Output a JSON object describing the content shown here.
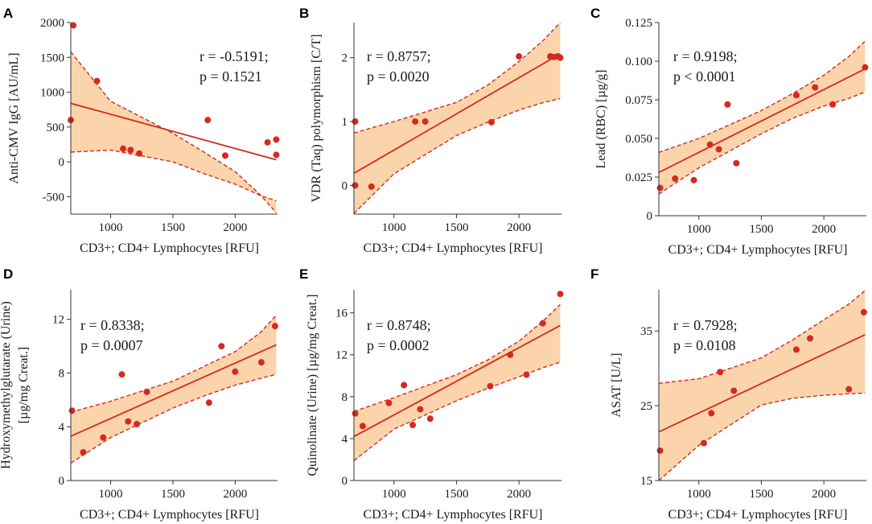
{
  "chart_data": [
    {
      "panel": "A",
      "type": "scatter",
      "xlabel": "CD3+; CD4+ Lymphocytes [RFU]",
      "ylabel": [
        "Anti-CMV IgG [AU/mL]"
      ],
      "xlim": [
        680,
        2340
      ],
      "ylim": [
        -750,
        2000
      ],
      "xticks": [
        1000,
        1500,
        2000
      ],
      "xtick_labels": [
        "1000",
        "1500",
        "2000"
      ],
      "yticks": [
        -500,
        0,
        500,
        1000,
        1500,
        2000
      ],
      "ytick_labels": [
        "-500",
        "0",
        "500",
        "1000",
        "1500",
        "2000"
      ],
      "stats": [
        "r = -0.5191;",
        "p = 0.1521"
      ],
      "points": [
        [
          680,
          600
        ],
        [
          700,
          1960
        ],
        [
          890,
          1160
        ],
        [
          1100,
          190
        ],
        [
          1160,
          170
        ],
        [
          1230,
          120
        ],
        [
          1780,
          600
        ],
        [
          1920,
          90
        ],
        [
          2260,
          280
        ],
        [
          2330,
          100
        ],
        [
          2330,
          320
        ]
      ],
      "fit": [
        [
          680,
          840
        ],
        [
          2330,
          30
        ]
      ],
      "ci_upper": [
        [
          680,
          1580
        ],
        [
          1000,
          870
        ],
        [
          1500,
          410
        ],
        [
          1750,
          140
        ],
        [
          2000,
          -140
        ],
        [
          2200,
          -470
        ],
        [
          2330,
          -730
        ]
      ],
      "ci_lower": [
        [
          680,
          140
        ],
        [
          1000,
          170
        ],
        [
          1500,
          0
        ],
        [
          1750,
          -170
        ],
        [
          2000,
          -320
        ],
        [
          2200,
          -480
        ],
        [
          2330,
          -560
        ]
      ]
    },
    {
      "panel": "B",
      "type": "scatter",
      "xlabel": "CD3+; CD4+ Lymphocytes [RFU]",
      "ylabel": [
        "VDR (Taq) polymorphism [C/T]"
      ],
      "xlim": [
        680,
        2340
      ],
      "ylim": [
        -0.45,
        2.55
      ],
      "xticks": [
        1000,
        1500,
        2000
      ],
      "xtick_labels": [
        "1000",
        "1500",
        "2000"
      ],
      "yticks": [
        0,
        1,
        2
      ],
      "ytick_labels": [
        "0",
        "1",
        "2"
      ],
      "stats": [
        "r = 0.8757;",
        "p = 0.0020"
      ],
      "points": [
        [
          690,
          1.0
        ],
        [
          690,
          0.0
        ],
        [
          820,
          -0.02
        ],
        [
          1170,
          1.0
        ],
        [
          1250,
          1.0
        ],
        [
          1780,
          0.99
        ],
        [
          2000,
          2.02
        ],
        [
          2250,
          2.02
        ],
        [
          2280,
          2.01
        ],
        [
          2310,
          2.02
        ],
        [
          2330,
          2.0
        ]
      ],
      "fit": [
        [
          680,
          0.19
        ],
        [
          2330,
          2.06
        ]
      ],
      "ci_upper": [
        [
          680,
          0.82
        ],
        [
          1000,
          1.0
        ],
        [
          1500,
          1.3
        ],
        [
          1750,
          1.57
        ],
        [
          2000,
          1.94
        ],
        [
          2200,
          2.28
        ],
        [
          2330,
          2.55
        ]
      ],
      "ci_lower": [
        [
          680,
          -0.44
        ],
        [
          1000,
          0.18
        ],
        [
          1500,
          0.78
        ],
        [
          1750,
          0.99
        ],
        [
          2000,
          1.18
        ],
        [
          2200,
          1.3
        ],
        [
          2330,
          1.36
        ]
      ]
    },
    {
      "panel": "C",
      "type": "scatter",
      "xlabel": "CD3+; CD4+ Lymphocytes [RFU]",
      "ylabel": [
        "Lead (RBC) [µg/g]"
      ],
      "xlim": [
        680,
        2340
      ],
      "ylim": [
        0,
        0.125
      ],
      "xticks": [
        1000,
        1500,
        2000
      ],
      "xtick_labels": [
        "1000",
        "1500",
        "2000"
      ],
      "yticks": [
        0,
        0.025,
        0.05,
        0.075,
        0.1,
        0.125
      ],
      "ytick_labels": [
        "0",
        "0.025",
        "0.050",
        "0.075",
        "0.100",
        "0.125"
      ],
      "stats": [
        "r = 0.9198;",
        "p < 0.0001"
      ],
      "points": [
        [
          690,
          0.018
        ],
        [
          810,
          0.024
        ],
        [
          960,
          0.023
        ],
        [
          1090,
          0.046
        ],
        [
          1160,
          0.043
        ],
        [
          1230,
          0.072
        ],
        [
          1300,
          0.034
        ],
        [
          1780,
          0.078
        ],
        [
          1930,
          0.083
        ],
        [
          2070,
          0.072
        ],
        [
          2330,
          0.096
        ]
      ],
      "fit": [
        [
          680,
          0.028
        ],
        [
          2330,
          0.095
        ]
      ],
      "ci_upper": [
        [
          680,
          0.041
        ],
        [
          1000,
          0.05
        ],
        [
          1500,
          0.068
        ],
        [
          1750,
          0.079
        ],
        [
          2000,
          0.091
        ],
        [
          2200,
          0.103
        ],
        [
          2330,
          0.113
        ]
      ],
      "ci_lower": [
        [
          680,
          0.014
        ],
        [
          1000,
          0.031
        ],
        [
          1500,
          0.053
        ],
        [
          1750,
          0.063
        ],
        [
          2000,
          0.071
        ],
        [
          2200,
          0.076
        ],
        [
          2330,
          0.08
        ]
      ]
    },
    {
      "panel": "D",
      "type": "scatter",
      "xlabel": "CD3+; CD4+ Lymphocytes [RFU]",
      "ylabel": [
        "Hydroxymethylglutarate (Urine)",
        "[µg/mg Creat.]"
      ],
      "xlim": [
        680,
        2340
      ],
      "ylim": [
        0,
        14.2
      ],
      "xticks": [
        1000,
        1500,
        2000
      ],
      "xtick_labels": [
        "1000",
        "1500",
        "2000"
      ],
      "yticks": [
        0,
        4,
        8,
        12
      ],
      "ytick_labels": [
        "0",
        "4",
        "8",
        "12"
      ],
      "stats": [
        "r = 0.8338;",
        "p = 0.0007"
      ],
      "points": [
        [
          690,
          5.2
        ],
        [
          780,
          2.1
        ],
        [
          940,
          3.2
        ],
        [
          1090,
          7.9
        ],
        [
          1140,
          4.4
        ],
        [
          1210,
          4.2
        ],
        [
          1290,
          6.6
        ],
        [
          1790,
          5.8
        ],
        [
          1890,
          10.0
        ],
        [
          2000,
          8.1
        ],
        [
          2210,
          8.8
        ],
        [
          2320,
          11.5
        ]
      ],
      "fit": [
        [
          680,
          3.3
        ],
        [
          2330,
          10.1
        ]
      ],
      "ci_upper": [
        [
          680,
          5.1
        ],
        [
          1000,
          5.9
        ],
        [
          1500,
          7.4
        ],
        [
          1750,
          8.5
        ],
        [
          2000,
          9.6
        ],
        [
          2200,
          11.0
        ],
        [
          2330,
          12.3
        ]
      ],
      "ci_lower": [
        [
          680,
          1.3
        ],
        [
          1000,
          3.2
        ],
        [
          1500,
          5.4
        ],
        [
          1750,
          6.3
        ],
        [
          2000,
          7.1
        ],
        [
          2200,
          7.6
        ],
        [
          2330,
          7.9
        ]
      ]
    },
    {
      "panel": "E",
      "type": "scatter",
      "xlabel": "CD3+; CD4+ Lymphocytes [RFU]",
      "ylabel": [
        "Quinolinate (Urine) [µg/mg Creat.]"
      ],
      "xlim": [
        680,
        2340
      ],
      "ylim": [
        0,
        18.2
      ],
      "xticks": [
        1000,
        1500,
        2000
      ],
      "xtick_labels": [
        "1000",
        "1500",
        "2000"
      ],
      "yticks": [
        0,
        4,
        8,
        12,
        16
      ],
      "ytick_labels": [
        "0",
        "4",
        "8",
        "12",
        "16"
      ],
      "stats": [
        "r = 0.8748;",
        "p = 0.0002"
      ],
      "points": [
        [
          690,
          6.4
        ],
        [
          750,
          5.2
        ],
        [
          960,
          7.4
        ],
        [
          1080,
          9.1
        ],
        [
          1150,
          5.3
        ],
        [
          1210,
          6.8
        ],
        [
          1290,
          5.9
        ],
        [
          1770,
          9.0
        ],
        [
          1930,
          12.0
        ],
        [
          2060,
          10.1
        ],
        [
          2190,
          15.0
        ],
        [
          2330,
          17.8
        ]
      ],
      "fit": [
        [
          680,
          4.2
        ],
        [
          2330,
          14.8
        ]
      ],
      "ci_upper": [
        [
          680,
          6.6
        ],
        [
          1000,
          7.9
        ],
        [
          1500,
          10.1
        ],
        [
          1750,
          11.5
        ],
        [
          2000,
          13.3
        ],
        [
          2200,
          15.3
        ],
        [
          2330,
          16.8
        ]
      ],
      "ci_lower": [
        [
          680,
          1.9
        ],
        [
          1000,
          4.9
        ],
        [
          1500,
          7.6
        ],
        [
          1750,
          8.8
        ],
        [
          2000,
          9.9
        ],
        [
          2200,
          10.8
        ],
        [
          2330,
          11.3
        ]
      ]
    },
    {
      "panel": "F",
      "type": "scatter",
      "xlabel": "CD3+; CD4+ Lymphocytes [RFU]",
      "ylabel": [
        "ASAT [U/L]"
      ],
      "xlim": [
        680,
        2340
      ],
      "ylim": [
        15,
        40.5
      ],
      "xticks": [
        1000,
        1500,
        2000
      ],
      "xtick_labels": [
        "1000",
        "1500",
        "2000"
      ],
      "yticks": [
        15,
        25,
        35
      ],
      "ytick_labels": [
        "15",
        "25",
        "35"
      ],
      "stats": [
        "r = 0.7928;",
        "p = 0.0108"
      ],
      "points": [
        [
          690,
          19.0
        ],
        [
          1040,
          20.0
        ],
        [
          1100,
          24.0
        ],
        [
          1170,
          29.5
        ],
        [
          1280,
          27.0
        ],
        [
          1780,
          32.5
        ],
        [
          1890,
          34.0
        ],
        [
          2200,
          27.2
        ],
        [
          2320,
          37.5
        ]
      ],
      "fit": [
        [
          680,
          21.5
        ],
        [
          2330,
          34.5
        ]
      ],
      "ci_upper": [
        [
          680,
          28.0
        ],
        [
          1000,
          28.6
        ],
        [
          1500,
          31.4
        ],
        [
          1750,
          33.8
        ],
        [
          2000,
          36.5
        ],
        [
          2200,
          38.6
        ],
        [
          2330,
          40.4
        ]
      ],
      "ci_lower": [
        [
          680,
          15.0
        ],
        [
          1000,
          19.7
        ],
        [
          1500,
          25.1
        ],
        [
          1750,
          26.0
        ],
        [
          2000,
          26.4
        ],
        [
          2200,
          26.6
        ],
        [
          2330,
          26.7
        ]
      ]
    }
  ]
}
